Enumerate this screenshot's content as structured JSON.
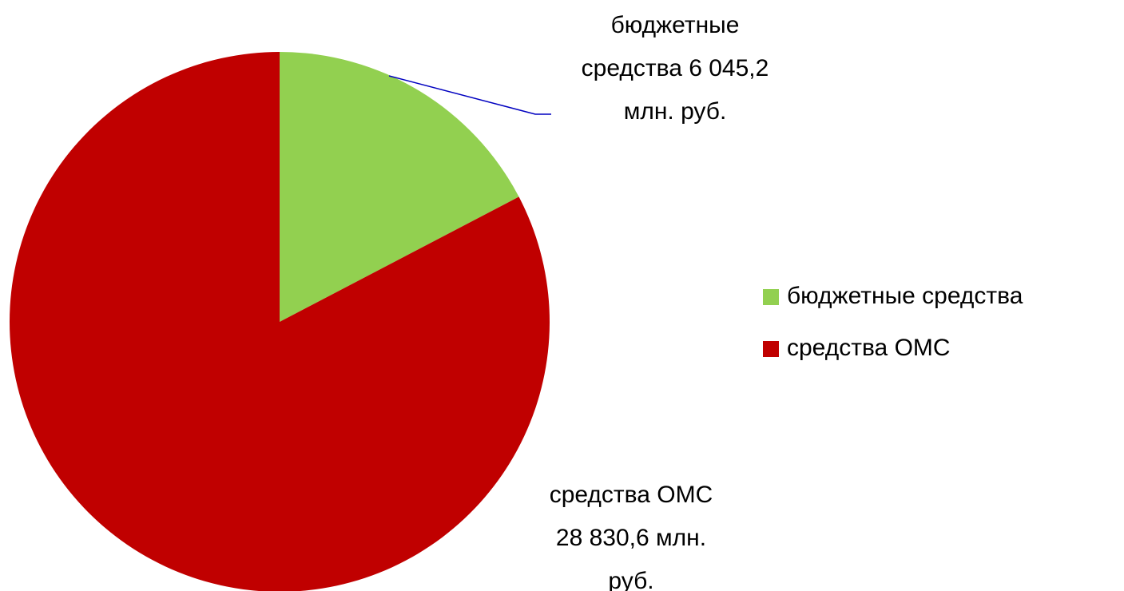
{
  "chart_data": {
    "type": "pie",
    "categories": [
      "бюджетные средства",
      "средства ОМС"
    ],
    "values": [
      6045.2,
      28830.6
    ],
    "value_labels": [
      "бюджетные средства 6 045,2 млн. руб.",
      "средства ОМС 28 830,6 млн. руб."
    ],
    "colors": [
      "#92d050",
      "#c00000"
    ],
    "legend": "right"
  }
}
